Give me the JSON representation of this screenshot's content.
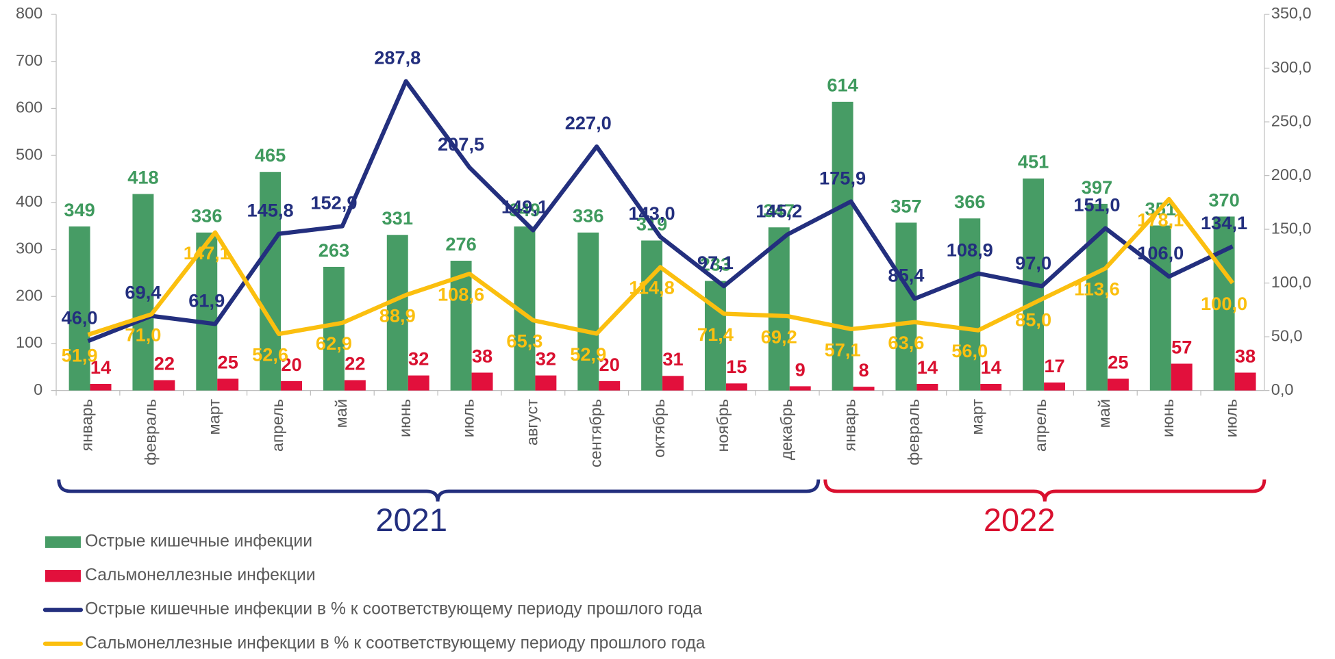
{
  "chart_data": {
    "type": "bar",
    "categories": [
      "январь",
      "февраль",
      "март",
      "апрель",
      "май",
      "июнь",
      "июль",
      "август",
      "сентябрь",
      "октябрь",
      "ноябрь",
      "декабрь",
      "январь",
      "февраль",
      "март",
      "апрель",
      "май",
      "июнь",
      "июль"
    ],
    "series": [
      {
        "name": "Острые кишечные инфекции",
        "type": "bar",
        "color": "#479c65",
        "label_color": "#3f9a5e",
        "axis": "y",
        "values": [
          349,
          418,
          336,
          465,
          263,
          331,
          276,
          349,
          336,
          319,
          233,
          347,
          614,
          357,
          366,
          451,
          397,
          351,
          370
        ]
      },
      {
        "name": "Сальмонеллезные инфекции",
        "type": "bar",
        "color": "#e2103c",
        "label_color": "#d9102f",
        "axis": "y",
        "values": [
          14,
          22,
          25,
          20,
          22,
          32,
          38,
          32,
          20,
          31,
          15,
          9,
          8,
          14,
          14,
          17,
          25,
          57,
          38
        ]
      },
      {
        "name": "Острые кишечные инфекции в % к соответствующему периоду прошлого года",
        "type": "line",
        "color": "#232f7e",
        "axis": "y2",
        "values": [
          46.0,
          69.4,
          61.9,
          145.8,
          152.9,
          287.8,
          207.5,
          149.1,
          227.0,
          143.0,
          97.1,
          145.2,
          175.9,
          85.4,
          108.9,
          97.0,
          151.0,
          106.0,
          134.1
        ],
        "value_labels": [
          "46,0",
          "69,4",
          "61,9",
          "145,8",
          "152,9",
          "287,8",
          "207,5",
          "149,1",
          "227,0",
          "143,0",
          "97,1",
          "145,2",
          "175,9",
          "85,4",
          "108,9",
          "97,0",
          "151,0",
          "106,0",
          "134,1"
        ]
      },
      {
        "name": "Сальмонеллезные инфекции в % к соответствующему периоду прошлого года",
        "type": "line",
        "color": "#fbbf0f",
        "axis": "y2",
        "values": [
          51.9,
          71.0,
          147.1,
          52.6,
          62.9,
          88.9,
          108.6,
          65.3,
          52.9,
          114.8,
          71.4,
          69.2,
          57.1,
          63.6,
          56.0,
          85.0,
          113.6,
          178.1,
          100.0
        ],
        "value_labels": [
          "51,9",
          "71,0",
          "147,1",
          "52,6",
          "62,9",
          "88,9",
          "108,6",
          "65,3",
          "52,9",
          "114,8",
          "71,4",
          "69,2",
          "57,1",
          "63,6",
          "56,0",
          "85,0",
          "113,6",
          "178,1",
          "100,0"
        ]
      }
    ],
    "ylim": [
      0,
      800
    ],
    "yticks": [
      0,
      100,
      200,
      300,
      400,
      500,
      600,
      700,
      800
    ],
    "y2lim": [
      0,
      350
    ],
    "y2ticks": [
      {
        "value": 0,
        "label": "0,0"
      },
      {
        "value": 50,
        "label": "50,0"
      },
      {
        "value": 100,
        "label": "100,0"
      },
      {
        "value": 150,
        "label": "150,0"
      },
      {
        "value": 200,
        "label": "200,0"
      },
      {
        "value": 250,
        "label": "250,0"
      },
      {
        "value": 300,
        "label": "300,0"
      },
      {
        "value": 350,
        "label": "350,0"
      }
    ],
    "annotations": [
      {
        "text": "2021",
        "color": "#232f7e"
      },
      {
        "text": "2022",
        "color": "#d9102f"
      }
    ]
  }
}
